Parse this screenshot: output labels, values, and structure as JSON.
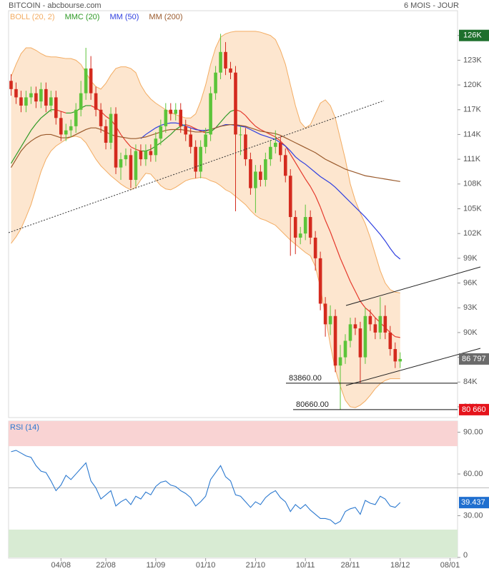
{
  "header": {
    "title": "BITCOIN - abcbourse.com",
    "period": "6 MOIS - JOUR"
  },
  "chart_data": [
    {
      "type": "candlestick",
      "categories": [
        null,
        null,
        null,
        null,
        null,
        null,
        null,
        null,
        null,
        null,
        "04/08",
        null,
        null,
        null,
        null,
        null,
        null,
        null,
        null,
        "22/08",
        null,
        null,
        null,
        null,
        null,
        null,
        null,
        null,
        null,
        "11/09",
        null,
        null,
        null,
        null,
        null,
        null,
        null,
        null,
        null,
        "01/10",
        null,
        null,
        null,
        null,
        null,
        null,
        null,
        null,
        null,
        "21/10",
        null,
        null,
        null,
        null,
        null,
        null,
        null,
        null,
        null,
        "10/11",
        null,
        null,
        null,
        null,
        null,
        null,
        null,
        null,
        "28/11",
        null,
        null,
        null,
        null,
        null,
        null,
        null,
        null,
        null,
        "18/12",
        null,
        null,
        null,
        null,
        null,
        null,
        null,
        null,
        null,
        "08/01",
        null
      ],
      "open": [
        120.5,
        119.5,
        118.5,
        117.5,
        118.5,
        119,
        118,
        119.5,
        117.5,
        118.5,
        116,
        114,
        114.5,
        115,
        117,
        119,
        122,
        119,
        117,
        115,
        113,
        116.5,
        110,
        111,
        111.5,
        108.5,
        112,
        111,
        112,
        111.5,
        113.5,
        115,
        117,
        116.5,
        117,
        115,
        114,
        112.5,
        109.5,
        112.5,
        114,
        119,
        121.5,
        124,
        122,
        121.5,
        114,
        114,
        111,
        107.5,
        109.5,
        108.5,
        111,
        112.5,
        113,
        111.5,
        109,
        104,
        101.5,
        102,
        104,
        101.5,
        99,
        93.5,
        91,
        92,
        86,
        87,
        89,
        91,
        90.5,
        87,
        92,
        91,
        90,
        92,
        90,
        88,
        86.5,
        null,
        null,
        null,
        null,
        null,
        null,
        null,
        null,
        null,
        null,
        null
      ],
      "high": [
        121.3,
        120.3,
        119.3,
        119.3,
        119.8,
        119.8,
        120.3,
        120.3,
        119.3,
        119.3,
        116.8,
        115.3,
        115.8,
        117.8,
        120.5,
        124.5,
        123.5,
        119.8,
        117.8,
        115.8,
        117.3,
        117.3,
        111.8,
        112.3,
        112.3,
        112.8,
        112.8,
        112.8,
        112.8,
        114.3,
        115.8,
        117.8,
        117.8,
        117.8,
        117.8,
        115.8,
        114.8,
        113.3,
        113.3,
        114.8,
        119.8,
        122.3,
        126.2,
        125.2,
        122.8,
        122.3,
        115,
        114.8,
        111.8,
        110.3,
        110.3,
        111.8,
        113.3,
        114.5,
        113.8,
        112.3,
        109.8,
        104.8,
        102.8,
        105.5,
        104.8,
        102.3,
        99.8,
        94.3,
        93.3,
        92.8,
        88.5,
        89.8,
        91.8,
        91.8,
        91.3,
        93,
        92.8,
        91.8,
        94.3,
        93.3,
        90.8,
        88.8,
        87.6,
        null,
        null,
        null,
        null,
        null,
        null,
        null,
        null,
        null,
        null,
        null
      ],
      "low": [
        118.7,
        117.7,
        116.7,
        116.7,
        117.7,
        117.2,
        117.2,
        116.7,
        116.7,
        115.2,
        113.2,
        113.2,
        113.7,
        114.2,
        116.2,
        118.2,
        118.2,
        116.2,
        114.2,
        112.2,
        112.2,
        109.2,
        108.5,
        110.2,
        107.5,
        107.7,
        110.2,
        110.2,
        110.7,
        110.7,
        112.7,
        114.2,
        115.7,
        115.7,
        114.2,
        113.2,
        111.7,
        108.7,
        108.7,
        111.7,
        113.2,
        118.2,
        120.7,
        121.2,
        120.7,
        104.7,
        111.5,
        110.2,
        106.7,
        104.5,
        107.7,
        107.7,
        110.2,
        111.7,
        110.7,
        108.2,
        99.3,
        99.5,
        100.7,
        101.2,
        100.7,
        97.5,
        92.7,
        89.5,
        89.7,
        85.2,
        80.66,
        86.2,
        88.2,
        89.7,
        83.86,
        86.2,
        90.2,
        89.2,
        89.2,
        89.2,
        87.2,
        85.7,
        85.7,
        null,
        null,
        null,
        null,
        null,
        null,
        null,
        null,
        null,
        null,
        null
      ],
      "close": [
        119.5,
        118.5,
        117.5,
        118.5,
        119,
        118,
        119.5,
        117.5,
        118.5,
        116,
        114,
        114.5,
        115,
        117,
        119,
        122,
        119,
        117,
        115,
        113,
        116.5,
        110,
        111,
        111.5,
        108.5,
        112,
        111,
        112,
        111.5,
        113.5,
        115,
        117,
        116.5,
        117,
        115,
        114,
        112.5,
        109.5,
        112.5,
        114,
        119,
        121.5,
        124,
        122,
        121.5,
        114,
        114,
        111,
        107.5,
        109.5,
        108.5,
        111,
        112.5,
        113,
        111.5,
        109,
        104,
        101.5,
        102,
        104,
        101.5,
        99,
        93.5,
        91,
        92,
        86,
        87,
        89,
        91,
        90.5,
        87,
        92,
        91,
        90,
        92,
        90,
        88,
        86.5,
        86.797,
        null,
        null,
        null,
        null,
        null,
        null,
        null,
        null,
        null,
        null,
        null
      ],
      "up_color": "#5cc43a",
      "down_color": "#d42a1e",
      "indicators": [
        {
          "name": "BOLL (20, 2)",
          "color": "#f3ac62",
          "fill": "#fde6cf",
          "upper": [
            121,
            122.5,
            123.8,
            124.5,
            124.5,
            124.2,
            123.8,
            123.5,
            123.4,
            123.4,
            123.3,
            123.2,
            123.2,
            123,
            122.5,
            121.5,
            120.5,
            119.8,
            119.5,
            120.2,
            121.2,
            122,
            122.2,
            122.2,
            122,
            121.5,
            120,
            119,
            118.3,
            117.8,
            117.4,
            117,
            116.7,
            116.4,
            116.2,
            116,
            116,
            116.5,
            118,
            120,
            122.5,
            124.5,
            125.8,
            126.2,
            126.4,
            126.5,
            126.5,
            126.5,
            126.5,
            126.5,
            126.4,
            126.2,
            126,
            125.5,
            124.2,
            122.5,
            120,
            117.5,
            115.5,
            114.8,
            115.2,
            116.5,
            117.8,
            118.2,
            117.5,
            116,
            113.5,
            111,
            108,
            106,
            104.5,
            103.2,
            101.5,
            99.5,
            97.5,
            96,
            95.2,
            94.9,
            94.8,
            null,
            null,
            null,
            null,
            null,
            null,
            null,
            null,
            null,
            null,
            null
          ],
          "lower": [
            100.8,
            101.6,
            102.6,
            104,
            105.5,
            107.5,
            109.5,
            111,
            112,
            112.6,
            113,
            113.4,
            113.7,
            113.8,
            113.6,
            113,
            112,
            111,
            110.2,
            109.6,
            109,
            108.5,
            108,
            107.6,
            107.3,
            107.6,
            108.5,
            109.3,
            109.2,
            108.5,
            107.8,
            107.4,
            107.3,
            107.6,
            108,
            108.4,
            108.6,
            108.7,
            108.8,
            108.7,
            108.4,
            108.2,
            107.8,
            107.3,
            107,
            106.5,
            106,
            105.5,
            104.8,
            104.2,
            103.8,
            103.6,
            103.3,
            103,
            102.4,
            101.8,
            101.2,
            100.7,
            100.2,
            99.7,
            99.3,
            98,
            95.5,
            92,
            88.5,
            85.5,
            83.5,
            81.8,
            81,
            80.9,
            81.2,
            81.7,
            82.4,
            83.2,
            83.8,
            84.2,
            84.4,
            84.4,
            84.4,
            null,
            null,
            null,
            null,
            null,
            null,
            null,
            null,
            null,
            null,
            null
          ]
        },
        {
          "name": "MMC (20)",
          "color": "#2f9a26",
          "down_color": "#e5392c",
          "values": [
            110.5,
            111.5,
            112.5,
            113.5,
            114.5,
            115.3,
            116,
            116.5,
            117,
            117,
            116.8,
            116.6,
            116.6,
            116.8,
            117.2,
            117.5,
            117.5,
            117.2,
            116.8,
            116.2,
            115.8,
            115,
            114,
            113.2,
            112.5,
            112.2,
            112,
            112,
            112.2,
            112.6,
            113,
            113.5,
            114,
            114.6,
            115,
            115.2,
            115,
            114.7,
            114.4,
            114.2,
            114.3,
            114.8,
            115.5,
            116.2,
            116.8,
            117,
            116.8,
            116.3,
            115.6,
            115,
            114.6,
            114.3,
            114,
            113.7,
            113.2,
            112.6,
            111.6,
            110.6,
            109.6,
            108.6,
            107.7,
            106.6,
            105.2,
            103.6,
            102.2,
            100.6,
            99,
            97.6,
            96.2,
            95,
            93.8,
            93,
            92.5,
            91.8,
            91.2,
            90.6,
            90,
            89.5,
            89.4,
            null,
            null,
            null,
            null,
            null,
            null,
            null,
            null,
            null,
            null,
            null
          ]
        },
        {
          "name": "MM (50)",
          "color": "#2f3fe0",
          "values": [
            null,
            null,
            null,
            null,
            null,
            null,
            null,
            null,
            null,
            null,
            null,
            null,
            null,
            null,
            null,
            null,
            null,
            null,
            null,
            null,
            null,
            null,
            null,
            null,
            null,
            null,
            113.5,
            114,
            114.4,
            114.8,
            115.1,
            115.3,
            115.4,
            115.4,
            115.3,
            115,
            114.8,
            114.6,
            114.5,
            114.5,
            114.6,
            114.8,
            115,
            115.2,
            115.2,
            115.1,
            115,
            114.9,
            114.6,
            114.3,
            114,
            113.8,
            113.6,
            113.4,
            113,
            112.6,
            112,
            111.3,
            110.8,
            110.4,
            109.9,
            109.4,
            108.9,
            108.5,
            108.1,
            107.6,
            107,
            106.4,
            105.8,
            105.2,
            104.6,
            104,
            103.3,
            102.6,
            101.9,
            101.1,
            100.2,
            99.4,
            98.9,
            null,
            null,
            null,
            null,
            null,
            null,
            null,
            null,
            null,
            null,
            null
          ]
        },
        {
          "name": "MM (200)",
          "color": "#9a5a2c",
          "values": [
            110,
            111,
            112,
            112.7,
            113.2,
            113.6,
            113.9,
            114,
            114,
            113.8,
            113.6,
            113.6,
            113.7,
            114,
            114.3,
            114.6,
            114.8,
            114.8,
            114.6,
            114.3,
            114,
            113.8,
            113.7,
            113.6,
            113.5,
            113.5,
            113.6,
            113.7,
            113.9,
            114.1,
            114.3,
            114.5,
            114.6,
            114.6,
            114.6,
            114.5,
            114.4,
            114.3,
            114.3,
            114.4,
            114.6,
            114.8,
            115,
            115.1,
            115.2,
            115.2,
            115.1,
            115,
            114.8,
            114.6,
            114.4,
            114.3,
            114.2,
            114.1,
            113.9,
            113.6,
            113.3,
            113,
            112.7,
            112.4,
            112.1,
            111.8,
            111.4,
            111,
            110.7,
            110.4,
            110.1,
            109.8,
            109.6,
            109.4,
            109.2,
            109,
            108.9,
            108.8,
            108.7,
            108.6,
            108.5,
            108.4,
            108.3,
            null,
            null,
            null,
            null,
            null,
            null,
            null,
            null,
            null,
            null,
            null
          ]
        }
      ],
      "annotations": [
        {
          "value": 83.86,
          "label": "83860.00"
        },
        {
          "value": 80.66,
          "label": "80660.00"
        }
      ],
      "price_tags": [
        {
          "value": 86.797,
          "label": "86 797",
          "color": "#6b6b6b"
        },
        {
          "value": 80.66,
          "label": "80 660",
          "color": "#e5141c"
        }
      ],
      "ylim": [
        79.7,
        129
      ],
      "yticks": [
        {
          "value": 81,
          "label": "81K"
        },
        {
          "value": 84,
          "label": "84K"
        },
        {
          "value": 87,
          "label": "87K"
        },
        {
          "value": 90,
          "label": "90K"
        },
        {
          "value": 93,
          "label": "93K"
        },
        {
          "value": 96,
          "label": "96K"
        },
        {
          "value": 99,
          "label": "99K"
        },
        {
          "value": 102,
          "label": "102K"
        },
        {
          "value": 105,
          "label": "105K"
        },
        {
          "value": 108,
          "label": "108K"
        },
        {
          "value": 111,
          "label": "111K"
        },
        {
          "value": 114,
          "label": "114K"
        },
        {
          "value": 117,
          "label": "117K"
        },
        {
          "value": 120,
          "label": "120K"
        },
        {
          "value": 123,
          "label": "123K"
        },
        {
          "value": 126,
          "label": "126K"
        }
      ]
    },
    {
      "type": "line",
      "title": "RSI (14)",
      "color": "#2a78cf",
      "tag_color": "#1f6fcf",
      "values": [
        76,
        77,
        75,
        73,
        72,
        66,
        62,
        61,
        55,
        48,
        52,
        59,
        56,
        60,
        64,
        68,
        55,
        50,
        42,
        45,
        48,
        37,
        40,
        42,
        38,
        44,
        42,
        47,
        45,
        51,
        54,
        55,
        52,
        51,
        48,
        46,
        43,
        37,
        40,
        44,
        56,
        61,
        66,
        58,
        55,
        45,
        44,
        40,
        36,
        40,
        38,
        43,
        46,
        48,
        43,
        40,
        33,
        38,
        35,
        38,
        34,
        31,
        28,
        28,
        27,
        24,
        26,
        33,
        35,
        36,
        31,
        41,
        39,
        38,
        44,
        42,
        37,
        36,
        39.437,
        null,
        null,
        null,
        null,
        null,
        null,
        null,
        null,
        null,
        null,
        null
      ],
      "bands": [
        {
          "from": 80,
          "to": 98,
          "color": "#f9d3d3"
        },
        {
          "from": 0,
          "to": 20,
          "color": "#d8ebd3"
        }
      ],
      "ref_line": 50,
      "ylim": [
        0,
        98
      ],
      "yticks": [
        0,
        {
          "value": 30,
          "label": "30.00"
        },
        {
          "value": 60,
          "label": "60.00"
        },
        {
          "value": 90,
          "label": "90.00"
        }
      ]
    }
  ]
}
